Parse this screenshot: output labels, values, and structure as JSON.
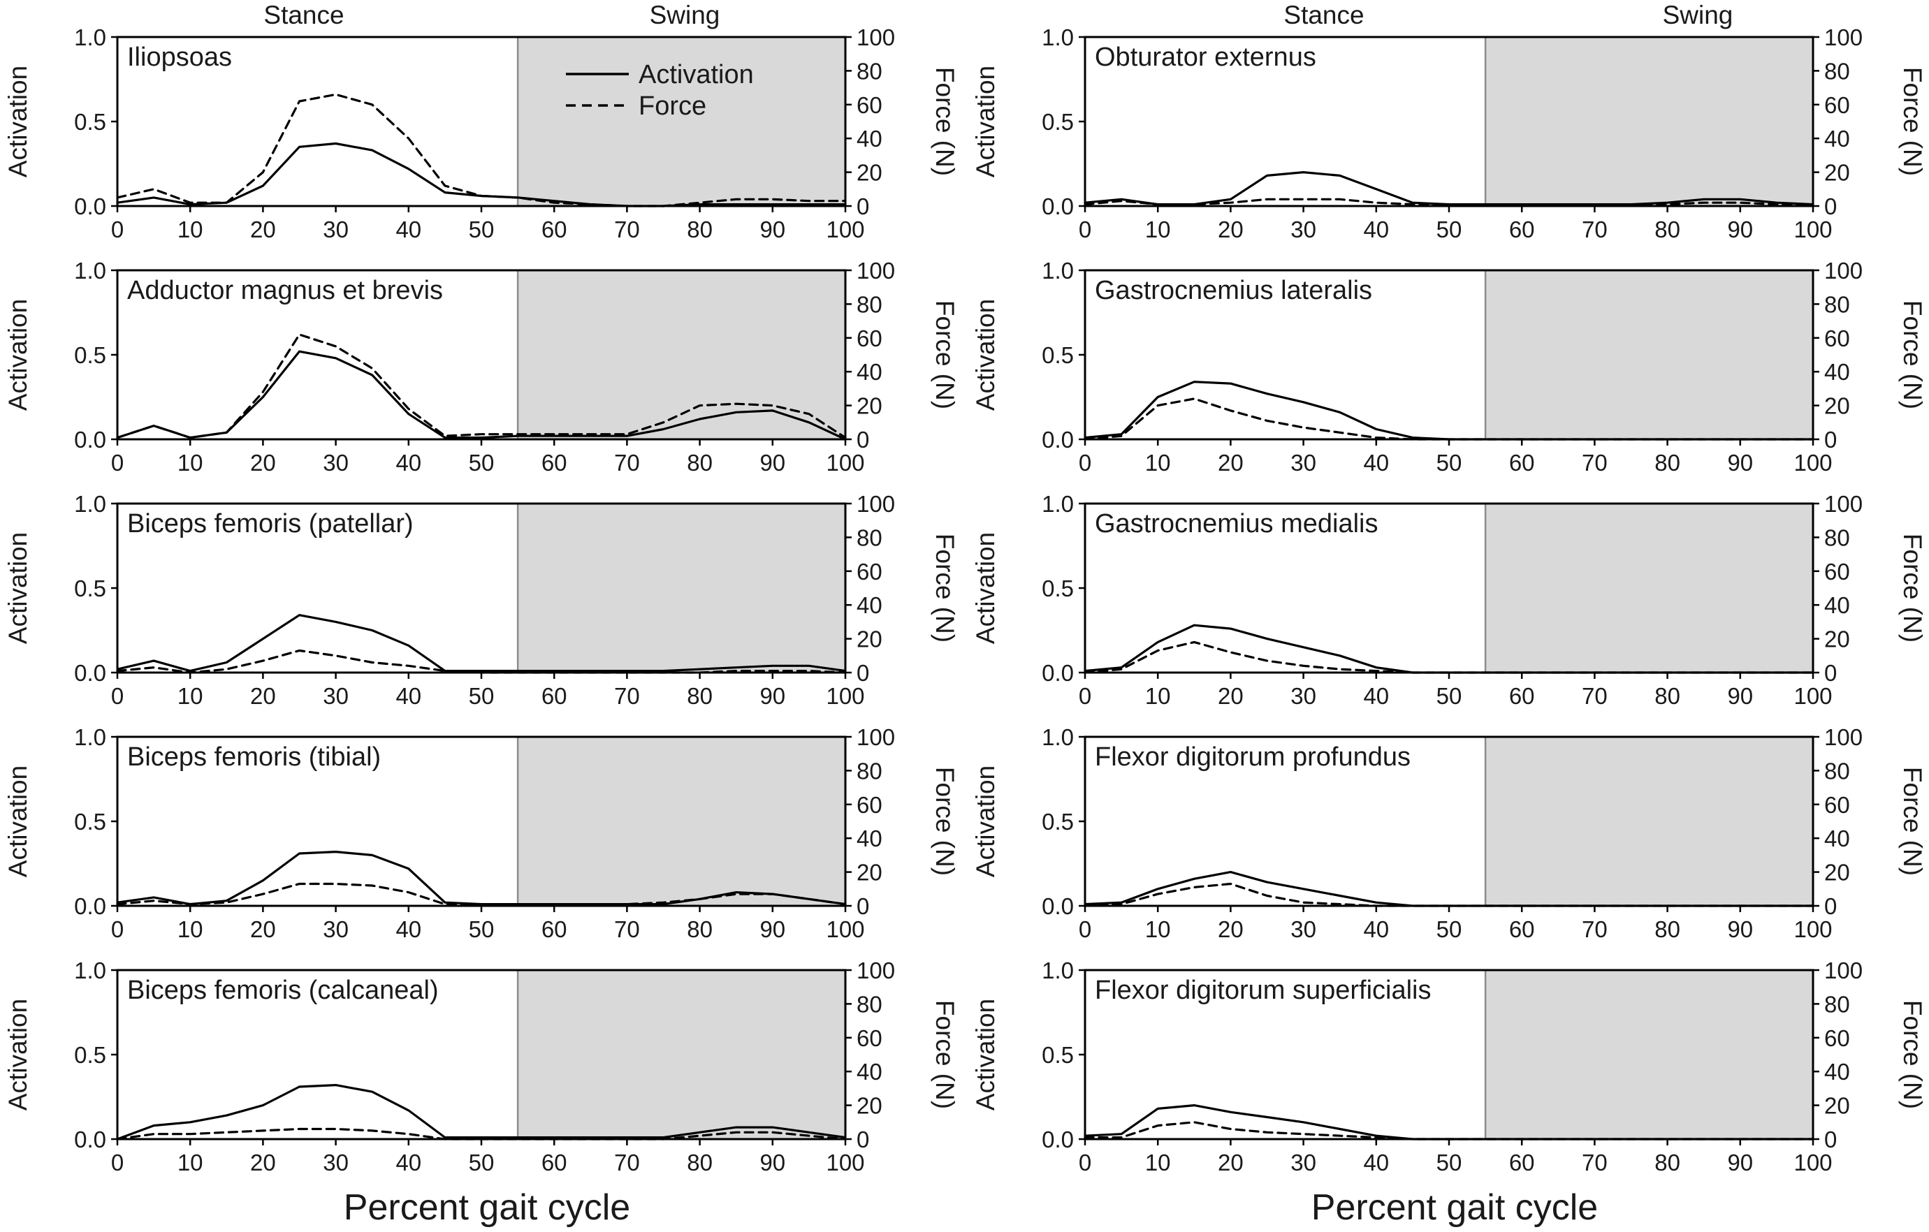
{
  "figure": {
    "phase_labels": {
      "stance": "Stance",
      "swing": "Swing"
    },
    "xlabel": "Percent gait cycle",
    "left_axis_label": "Activation",
    "right_axis_label": "Force (N)",
    "legend": {
      "activation": "Activation",
      "force": "Force"
    },
    "colors": {
      "swing_shade": "#d9d9d9",
      "line": "#000000",
      "divider": "#8c8c8c"
    }
  },
  "chart_data": [
    {
      "type": "line",
      "title": "Iliopsoas",
      "column": "left",
      "x": [
        0,
        5,
        10,
        15,
        20,
        25,
        30,
        35,
        40,
        45,
        50,
        55,
        60,
        65,
        70,
        75,
        80,
        85,
        90,
        95,
        100
      ],
      "xlim": [
        0,
        100
      ],
      "ylim": [
        0,
        1.0
      ],
      "y2lim": [
        0,
        100
      ],
      "swing_start": 55,
      "series": [
        {
          "name": "Activation",
          "axis": "left",
          "values": [
            0.02,
            0.05,
            0.01,
            0.02,
            0.12,
            0.35,
            0.37,
            0.33,
            0.22,
            0.08,
            0.06,
            0.05,
            0.03,
            0.01,
            0.0,
            0.0,
            0.01,
            0.01,
            0.01,
            0.01,
            0.01
          ]
        },
        {
          "name": "Force (N)",
          "axis": "right",
          "values": [
            5,
            10,
            2,
            2,
            20,
            62,
            66,
            60,
            40,
            12,
            6,
            5,
            2,
            1,
            0,
            0,
            2,
            4,
            4,
            3,
            3
          ]
        }
      ]
    },
    {
      "type": "line",
      "title": "Adductor magnus et brevis",
      "column": "left",
      "x": [
        0,
        5,
        10,
        15,
        20,
        25,
        30,
        35,
        40,
        45,
        50,
        55,
        60,
        65,
        70,
        75,
        80,
        85,
        90,
        95,
        100
      ],
      "xlim": [
        0,
        100
      ],
      "ylim": [
        0,
        1.0
      ],
      "y2lim": [
        0,
        100
      ],
      "swing_start": 55,
      "series": [
        {
          "name": "Activation",
          "axis": "left",
          "values": [
            0.01,
            0.08,
            0.01,
            0.04,
            0.25,
            0.52,
            0.48,
            0.38,
            0.15,
            0.01,
            0.01,
            0.02,
            0.02,
            0.02,
            0.02,
            0.06,
            0.12,
            0.16,
            0.17,
            0.1,
            0.0
          ]
        },
        {
          "name": "Force (N)",
          "axis": "right",
          "values": [
            1,
            8,
            1,
            4,
            28,
            62,
            55,
            42,
            18,
            2,
            3,
            3,
            3,
            3,
            3,
            10,
            20,
            21,
            20,
            15,
            1
          ]
        }
      ]
    },
    {
      "type": "line",
      "title": "Biceps femoris (patellar)",
      "column": "left",
      "x": [
        0,
        5,
        10,
        15,
        20,
        25,
        30,
        35,
        40,
        45,
        50,
        55,
        60,
        65,
        70,
        75,
        80,
        85,
        90,
        95,
        100
      ],
      "xlim": [
        0,
        100
      ],
      "ylim": [
        0,
        1.0
      ],
      "y2lim": [
        0,
        100
      ],
      "swing_start": 55,
      "series": [
        {
          "name": "Activation",
          "axis": "left",
          "values": [
            0.02,
            0.07,
            0.01,
            0.06,
            0.2,
            0.34,
            0.3,
            0.25,
            0.16,
            0.01,
            0.01,
            0.01,
            0.01,
            0.01,
            0.01,
            0.01,
            0.02,
            0.03,
            0.04,
            0.04,
            0.01
          ]
        },
        {
          "name": "Force (N)",
          "axis": "right",
          "values": [
            1,
            3,
            0,
            2,
            7,
            13,
            10,
            6,
            4,
            1,
            0,
            0,
            0,
            0,
            0,
            0,
            0,
            1,
            1,
            1,
            0
          ]
        }
      ]
    },
    {
      "type": "line",
      "title": "Biceps femoris (tibial)",
      "column": "left",
      "x": [
        0,
        5,
        10,
        15,
        20,
        25,
        30,
        35,
        40,
        45,
        50,
        55,
        60,
        65,
        70,
        75,
        80,
        85,
        90,
        95,
        100
      ],
      "xlim": [
        0,
        100
      ],
      "ylim": [
        0,
        1.0
      ],
      "y2lim": [
        0,
        100
      ],
      "swing_start": 55,
      "series": [
        {
          "name": "Activation",
          "axis": "left",
          "values": [
            0.02,
            0.05,
            0.01,
            0.03,
            0.15,
            0.31,
            0.32,
            0.3,
            0.22,
            0.02,
            0.01,
            0.01,
            0.01,
            0.01,
            0.01,
            0.01,
            0.04,
            0.08,
            0.07,
            0.04,
            0.01
          ]
        },
        {
          "name": "Force (N)",
          "axis": "right",
          "values": [
            1,
            3,
            1,
            2,
            7,
            13,
            13,
            12,
            8,
            1,
            1,
            1,
            1,
            1,
            1,
            2,
            4,
            7,
            7,
            4,
            1
          ]
        }
      ]
    },
    {
      "type": "line",
      "title": "Biceps femoris (calcaneal)",
      "column": "left",
      "x": [
        0,
        5,
        10,
        15,
        20,
        25,
        30,
        35,
        40,
        45,
        50,
        55,
        60,
        65,
        70,
        75,
        80,
        85,
        90,
        95,
        100
      ],
      "xlim": [
        0,
        100
      ],
      "ylim": [
        0,
        1.0
      ],
      "y2lim": [
        0,
        100
      ],
      "swing_start": 55,
      "series": [
        {
          "name": "Activation",
          "axis": "left",
          "values": [
            0.0,
            0.08,
            0.1,
            0.14,
            0.2,
            0.31,
            0.32,
            0.28,
            0.17,
            0.01,
            0.01,
            0.01,
            0.01,
            0.01,
            0.01,
            0.01,
            0.04,
            0.07,
            0.07,
            0.04,
            0.01
          ]
        },
        {
          "name": "Force (N)",
          "axis": "right",
          "values": [
            0,
            3,
            3,
            4,
            5,
            6,
            6,
            5,
            3,
            0,
            0,
            0,
            0,
            0,
            0,
            0,
            2,
            4,
            4,
            2,
            0
          ]
        }
      ]
    },
    {
      "type": "line",
      "title": "Obturator externus",
      "column": "right",
      "x": [
        0,
        5,
        10,
        15,
        20,
        25,
        30,
        35,
        40,
        45,
        50,
        55,
        60,
        65,
        70,
        75,
        80,
        85,
        90,
        95,
        100
      ],
      "xlim": [
        0,
        100
      ],
      "ylim": [
        0,
        1.0
      ],
      "y2lim": [
        0,
        100
      ],
      "swing_start": 55,
      "series": [
        {
          "name": "Activation",
          "axis": "left",
          "values": [
            0.02,
            0.04,
            0.01,
            0.01,
            0.04,
            0.18,
            0.2,
            0.18,
            0.1,
            0.02,
            0.01,
            0.01,
            0.01,
            0.01,
            0.01,
            0.01,
            0.02,
            0.04,
            0.04,
            0.02,
            0.01
          ]
        },
        {
          "name": "Force (N)",
          "axis": "right",
          "values": [
            1,
            3,
            1,
            1,
            2,
            4,
            4,
            4,
            2,
            1,
            1,
            1,
            1,
            1,
            1,
            1,
            1,
            2,
            2,
            1,
            1
          ]
        }
      ]
    },
    {
      "type": "line",
      "title": "Gastrocnemius lateralis",
      "column": "right",
      "x": [
        0,
        5,
        10,
        15,
        20,
        25,
        30,
        35,
        40,
        45,
        50,
        55,
        60,
        65,
        70,
        75,
        80,
        85,
        90,
        95,
        100
      ],
      "xlim": [
        0,
        100
      ],
      "ylim": [
        0,
        1.0
      ],
      "y2lim": [
        0,
        100
      ],
      "swing_start": 55,
      "series": [
        {
          "name": "Activation",
          "axis": "left",
          "values": [
            0.01,
            0.03,
            0.25,
            0.34,
            0.33,
            0.27,
            0.22,
            0.16,
            0.06,
            0.01,
            0.0,
            0.0,
            0.0,
            0.0,
            0.0,
            0.0,
            0.0,
            0.0,
            0.0,
            0.0,
            0.0
          ]
        },
        {
          "name": "Force (N)",
          "axis": "right",
          "values": [
            0,
            2,
            20,
            24,
            17,
            11,
            7,
            4,
            1,
            0,
            0,
            0,
            0,
            0,
            0,
            0,
            0,
            0,
            0,
            0,
            0
          ]
        }
      ]
    },
    {
      "type": "line",
      "title": "Gastrocnemius medialis",
      "column": "right",
      "x": [
        0,
        5,
        10,
        15,
        20,
        25,
        30,
        35,
        40,
        45,
        50,
        55,
        60,
        65,
        70,
        75,
        80,
        85,
        90,
        95,
        100
      ],
      "xlim": [
        0,
        100
      ],
      "ylim": [
        0,
        1.0
      ],
      "y2lim": [
        0,
        100
      ],
      "swing_start": 55,
      "series": [
        {
          "name": "Activation",
          "axis": "left",
          "values": [
            0.01,
            0.03,
            0.18,
            0.28,
            0.26,
            0.2,
            0.15,
            0.1,
            0.03,
            0.0,
            0.0,
            0.0,
            0.0,
            0.0,
            0.0,
            0.0,
            0.0,
            0.0,
            0.0,
            0.0,
            0.0
          ]
        },
        {
          "name": "Force (N)",
          "axis": "right",
          "values": [
            0,
            2,
            13,
            18,
            12,
            7,
            4,
            2,
            1,
            0,
            0,
            0,
            0,
            0,
            0,
            0,
            0,
            0,
            0,
            0,
            0
          ]
        }
      ]
    },
    {
      "type": "line",
      "title": "Flexor digitorum profundus",
      "column": "right",
      "x": [
        0,
        5,
        10,
        15,
        20,
        25,
        30,
        35,
        40,
        45,
        50,
        55,
        60,
        65,
        70,
        75,
        80,
        85,
        90,
        95,
        100
      ],
      "xlim": [
        0,
        100
      ],
      "ylim": [
        0,
        1.0
      ],
      "y2lim": [
        0,
        100
      ],
      "swing_start": 55,
      "series": [
        {
          "name": "Activation",
          "axis": "left",
          "values": [
            0.01,
            0.02,
            0.1,
            0.16,
            0.2,
            0.14,
            0.1,
            0.06,
            0.02,
            0.0,
            0.0,
            0.0,
            0.0,
            0.0,
            0.0,
            0.0,
            0.0,
            0.0,
            0.0,
            0.0,
            0.0
          ]
        },
        {
          "name": "Force (N)",
          "axis": "right",
          "values": [
            0,
            1,
            7,
            11,
            13,
            6,
            2,
            1,
            0,
            0,
            0,
            0,
            0,
            0,
            0,
            0,
            0,
            0,
            0,
            0,
            0
          ]
        }
      ]
    },
    {
      "type": "line",
      "title": "Flexor digitorum superficialis",
      "column": "right",
      "x": [
        0,
        5,
        10,
        15,
        20,
        25,
        30,
        35,
        40,
        45,
        50,
        55,
        60,
        65,
        70,
        75,
        80,
        85,
        90,
        95,
        100
      ],
      "xlim": [
        0,
        100
      ],
      "ylim": [
        0,
        1.0
      ],
      "y2lim": [
        0,
        100
      ],
      "swing_start": 55,
      "series": [
        {
          "name": "Activation",
          "axis": "left",
          "values": [
            0.02,
            0.03,
            0.18,
            0.2,
            0.16,
            0.13,
            0.1,
            0.06,
            0.02,
            0.0,
            0.0,
            0.0,
            0.0,
            0.0,
            0.0,
            0.0,
            0.0,
            0.0,
            0.0,
            0.0,
            0.0
          ]
        },
        {
          "name": "Force (N)",
          "axis": "right",
          "values": [
            1,
            1,
            8,
            10,
            6,
            4,
            3,
            2,
            1,
            0,
            0,
            0,
            0,
            0,
            0,
            0,
            0,
            0,
            0,
            0,
            0
          ]
        }
      ]
    }
  ]
}
